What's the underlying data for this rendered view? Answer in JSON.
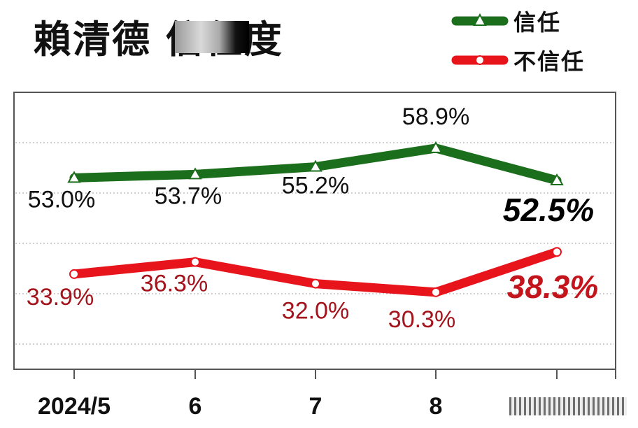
{
  "title": {
    "text": "賴清德    信任度"
  },
  "legend": [
    {
      "label": "信任",
      "color": "#1b6e1b",
      "marker": "triangle-icon"
    },
    {
      "label": "不信任",
      "color": "#e8141c",
      "marker": "circle-icon"
    }
  ],
  "chart_data": {
    "type": "line",
    "categories": [
      "2024/5",
      "6",
      "7",
      "8",
      "9"
    ],
    "xtick_labels": [
      "2024/5",
      "6",
      "7",
      "8",
      ""
    ],
    "ylim": [
      15,
      70
    ],
    "grid": true,
    "legend_position": "top-right",
    "series": [
      {
        "name": "信任",
        "color": "#1b6e1b",
        "label_color": "#111111",
        "marker": "triangle",
        "values": [
          53.0,
          53.7,
          55.2,
          58.9,
          52.5
        ],
        "labels": [
          "53.0%",
          "53.7%",
          "55.2%",
          "58.9%",
          "52.5%"
        ]
      },
      {
        "name": "不信任",
        "color": "#e8141c",
        "label_color": "#a3141c",
        "marker": "circle",
        "values": [
          33.9,
          36.3,
          32.0,
          30.3,
          38.3
        ],
        "labels": [
          "33.9%",
          "36.3%",
          "32.0%",
          "30.3%",
          "38.3%"
        ]
      }
    ]
  }
}
